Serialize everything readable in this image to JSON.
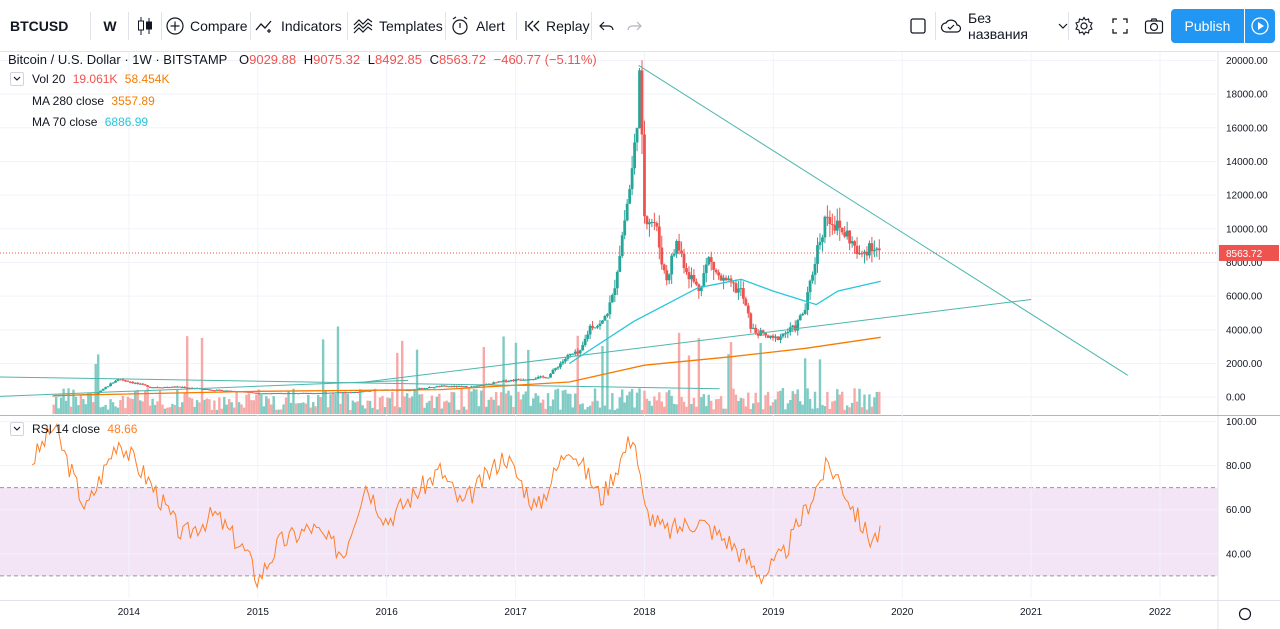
{
  "toolbar": {
    "symbol": "BTCUSD",
    "interval": "W",
    "compare_label": "Compare",
    "indicators_label": "Indicators",
    "templates_label": "Templates",
    "alert_label": "Alert",
    "replay_label": "Replay",
    "layout_name": "Без названия",
    "publish_label": "Publish"
  },
  "legend": {
    "symbol_title": "Bitcoin / U.S. Dollar · 1W · BITSTAMP",
    "open_key": "O",
    "open": "9029.88",
    "high_key": "H",
    "high": "9075.32",
    "low_key": "L",
    "low": "8492.85",
    "close_key": "C",
    "close": "8563.72",
    "change": "−460.77 (−5.11%)"
  },
  "indicators": {
    "vol": {
      "label": "Vol 20",
      "value1": "19.061K",
      "value2": "58.454K"
    },
    "ma280": {
      "label": "MA 280 close",
      "value": "3557.89"
    },
    "ma70": {
      "label": "MA 70 close",
      "value": "6886.99"
    },
    "rsi": {
      "label": "RSI 14 close",
      "value": "48.66"
    }
  },
  "colors": {
    "up": "#26a69a",
    "down": "#ef5350",
    "vol_up": "#80cbc4",
    "vol_down": "#f7a9a7",
    "ma280": "#f57c00",
    "ma70": "#26c6da",
    "trendline": "#4db6ac",
    "rsi": "#ff7f27",
    "rsi_band": "#f3e5f5",
    "accent": "#2196f3"
  },
  "chart_data": [
    {
      "type": "candlestick",
      "title": "Bitcoin / U.S. Dollar · 1W · BITSTAMP",
      "y_ticks": [
        "20000.00",
        "18000.00",
        "16000.00",
        "14000.00",
        "12000.00",
        "10000.00",
        "8000.00",
        "6000.00",
        "4000.00",
        "2000.00",
        "0.00"
      ],
      "x_ticks": [
        "2014",
        "2015",
        "2016",
        "2017",
        "2018",
        "2019",
        "2020",
        "2021",
        "2022"
      ],
      "ylim": [
        -1000,
        20500
      ],
      "last_price_label": "8563.72",
      "series_points": [
        [
          "2013-06",
          100
        ],
        [
          "2013-10",
          200
        ],
        [
          "2013-12",
          1100
        ],
        [
          "2014-03",
          600
        ],
        [
          "2014-06",
          600
        ],
        [
          "2014-09",
          420
        ],
        [
          "2014-12",
          320
        ],
        [
          "2015-01",
          230
        ],
        [
          "2015-06",
          240
        ],
        [
          "2015-10",
          300
        ],
        [
          "2015-12",
          430
        ],
        [
          "2016-03",
          420
        ],
        [
          "2016-06",
          650
        ],
        [
          "2016-09",
          610
        ],
        [
          "2016-12",
          960
        ],
        [
          "2017-02",
          1100
        ],
        [
          "2017-04",
          1200
        ],
        [
          "2017-05",
          1900
        ],
        [
          "2017-06",
          2500
        ],
        [
          "2017-07",
          2600
        ],
        [
          "2017-08",
          4300
        ],
        [
          "2017-09",
          4300
        ],
        [
          "2017-10",
          5800
        ],
        [
          "2017-11",
          9900
        ],
        [
          "2017-12",
          14000
        ],
        [
          "2017-12-17",
          19000
        ],
        [
          "2018-01",
          11000
        ],
        [
          "2018-02",
          10300
        ],
        [
          "2018-03",
          6900
        ],
        [
          "2018-04",
          9200
        ],
        [
          "2018-05",
          7500
        ],
        [
          "2018-06",
          6400
        ],
        [
          "2018-07",
          8200
        ],
        [
          "2018-08",
          7000
        ],
        [
          "2018-09",
          6600
        ],
        [
          "2018-10",
          6300
        ],
        [
          "2018-11",
          4000
        ],
        [
          "2018-12",
          3700
        ],
        [
          "2019-01",
          3400
        ],
        [
          "2019-02",
          3800
        ],
        [
          "2019-03",
          4100
        ],
        [
          "2019-04",
          5300
        ],
        [
          "2019-05",
          8600
        ],
        [
          "2019-06",
          11000
        ],
        [
          "2019-07",
          10000
        ],
        [
          "2019-08",
          9600
        ],
        [
          "2019-09",
          8200
        ],
        [
          "2019-10",
          9200
        ],
        [
          "2019-11",
          8563.72
        ]
      ],
      "overlays": [
        {
          "name": "MA 280 close",
          "points": [
            [
              "2013-06",
              100
            ],
            [
              "2015-01",
              350
            ],
            [
              "2016-06",
              450
            ],
            [
              "2017-06",
              900
            ],
            [
              "2018-01",
              1900
            ],
            [
              "2018-09",
              2400
            ],
            [
              "2019-04",
              2900
            ],
            [
              "2019-11",
              3557.89
            ]
          ]
        },
        {
          "name": "MA 70 close",
          "points": [
            [
              "2017-06",
              2000
            ],
            [
              "2017-12",
              4500
            ],
            [
              "2018-06",
              6500
            ],
            [
              "2018-10",
              7000
            ],
            [
              "2019-01",
              6300
            ],
            [
              "2019-05",
              5500
            ],
            [
              "2019-07",
              6300
            ],
            [
              "2019-11",
              6886.99
            ]
          ]
        }
      ]
    },
    {
      "type": "line",
      "title": "RSI 14 close",
      "y_ticks": [
        "100.00",
        "80.00",
        "60.00",
        "40.00"
      ],
      "ylim": [
        20,
        102
      ],
      "bands": [
        30,
        70
      ],
      "series": [
        {
          "name": "RSI 14 close",
          "x": [
            "2013-04",
            "2013-06",
            "2013-09",
            "2013-12",
            "2014-03",
            "2014-06",
            "2014-09",
            "2014-12",
            "2015-01",
            "2015-03",
            "2015-06",
            "2015-09",
            "2015-11",
            "2016-01",
            "2016-06",
            "2016-08",
            "2016-12",
            "2017-03",
            "2017-06",
            "2017-09",
            "2017-12",
            "2018-01",
            "2018-03",
            "2018-06",
            "2018-09",
            "2018-11",
            "2018-12",
            "2019-02",
            "2019-04",
            "2019-06",
            "2019-07",
            "2019-09",
            "2019-10",
            "2019-11"
          ],
          "values": [
            82,
            98,
            60,
            92,
            72,
            48,
            58,
            40,
            28,
            45,
            52,
            40,
            72,
            55,
            78,
            62,
            85,
            60,
            90,
            65,
            95,
            60,
            50,
            55,
            45,
            35,
            30,
            40,
            60,
            80,
            75,
            55,
            47,
            48.66
          ]
        }
      ]
    }
  ]
}
